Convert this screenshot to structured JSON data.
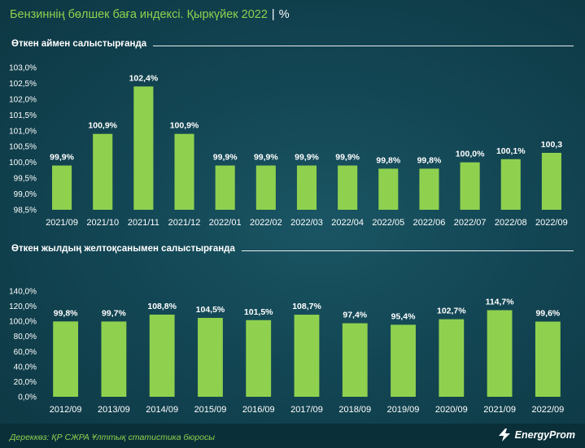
{
  "header": {
    "title": "Бензиннің бөлшек баға индексі. Қыркүйек 2022",
    "separator": "|",
    "unit": "%"
  },
  "footer": {
    "source": "Дереккөз: ҚР СЖРА Ұлттық статистика бюросы",
    "brand": "EnergyProm"
  },
  "colors": {
    "bar": "#8fd14f",
    "background": "#134654",
    "title_accent": "#8fd14f"
  },
  "chart_data": [
    {
      "type": "bar",
      "title": "Өткен аймен салыстырғанда",
      "categories": [
        "2021/09",
        "2021/10",
        "2021/11",
        "2021/12",
        "2022/01",
        "2022/02",
        "2022/03",
        "2022/04",
        "2022/05",
        "2022/06",
        "2022/07",
        "2022/08",
        "2022/09"
      ],
      "values": [
        99.9,
        100.9,
        102.4,
        100.9,
        99.9,
        99.9,
        99.9,
        99.9,
        99.8,
        99.8,
        100.0,
        100.1,
        100.3
      ],
      "labels": [
        "99,9%",
        "100,9%",
        "102,4%",
        "100,9%",
        "99,9%",
        "99,9%",
        "99,9%",
        "99,9%",
        "99,8%",
        "99,8%",
        "100,0%",
        "100,1%",
        "100,3"
      ],
      "ylim": [
        98.5,
        103.0
      ],
      "yticks": [
        98.5,
        99.0,
        99.5,
        100.0,
        100.5,
        101.0,
        101.5,
        102.0,
        102.5,
        103.0
      ],
      "ytick_labels": [
        "98,5%",
        "99,0%",
        "99,5%",
        "100,0%",
        "100,5%",
        "101,0%",
        "101,5%",
        "102,0%",
        "102,5%",
        "103,0%"
      ],
      "grid": false
    },
    {
      "type": "bar",
      "title": "Өткен жылдың желтоқсанымен салыстырғанда",
      "categories": [
        "2012/09",
        "2013/09",
        "2014/09",
        "2015/09",
        "2016/09",
        "2017/09",
        "2018/09",
        "2019/09",
        "2020/09",
        "2021/09",
        "2022/09"
      ],
      "values": [
        99.8,
        99.7,
        108.8,
        104.5,
        101.5,
        108.7,
        97.4,
        95.4,
        102.7,
        114.7,
        99.6
      ],
      "labels": [
        "99,8%",
        "99,7%",
        "108,8%",
        "104,5%",
        "101,5%",
        "108,7%",
        "97,4%",
        "95,4%",
        "102,7%",
        "114,7%",
        "99,6%"
      ],
      "ylim": [
        0,
        140
      ],
      "yticks": [
        0,
        20,
        40,
        60,
        80,
        100,
        120,
        140
      ],
      "ytick_labels": [
        "0,0%",
        "20,0%",
        "40,0%",
        "60,0%",
        "80,0%",
        "100,0%",
        "120,0%",
        "140,0%"
      ],
      "grid": false
    }
  ]
}
